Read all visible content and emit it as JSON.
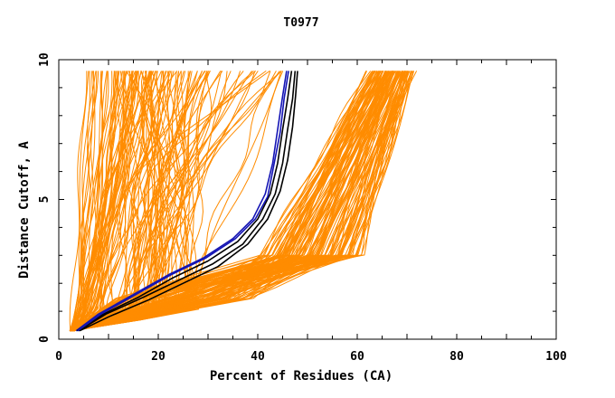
{
  "chart_data": {
    "type": "line",
    "title": "T0977",
    "xlabel": "Percent of Residues (CA)",
    "ylabel": "Distance Cutoff, A",
    "xlim": [
      0,
      100
    ],
    "ylim": [
      0,
      10
    ],
    "x_ticks": [
      "0",
      "20",
      "40",
      "60",
      "80",
      "100"
    ],
    "y_ticks": [
      "0",
      "5",
      "10"
    ],
    "grid": false,
    "colors": {
      "models": "#ff8c00",
      "highlight_blue": "#1414b4",
      "highlight_black": "#000000"
    },
    "series": [
      {
        "color": "blue",
        "points": [
          [
            3.5,
            0.3
          ],
          [
            8,
            0.9
          ],
          [
            15,
            1.6
          ],
          [
            22,
            2.3
          ],
          [
            29,
            2.9
          ],
          [
            35,
            3.6
          ],
          [
            39,
            4.3
          ],
          [
            41.5,
            5.2
          ],
          [
            43,
            6.3
          ],
          [
            44,
            7.5
          ],
          [
            45,
            8.7
          ],
          [
            45.8,
            9.6
          ]
        ]
      },
      {
        "color": "black",
        "points": [
          [
            3.7,
            0.3
          ],
          [
            9,
            0.9
          ],
          [
            16,
            1.5
          ],
          [
            23,
            2.2
          ],
          [
            30,
            2.8
          ],
          [
            36,
            3.5
          ],
          [
            40,
            4.3
          ],
          [
            42.5,
            5.2
          ],
          [
            44,
            6.3
          ],
          [
            45,
            7.5
          ],
          [
            46,
            8.6
          ],
          [
            46.8,
            9.6
          ]
        ]
      },
      {
        "color": "black",
        "points": [
          [
            4,
            0.3
          ],
          [
            9.5,
            0.9
          ],
          [
            17,
            1.5
          ],
          [
            24,
            2.1
          ],
          [
            31,
            2.7
          ],
          [
            37,
            3.4
          ],
          [
            41,
            4.3
          ],
          [
            43.5,
            5.2
          ],
          [
            45,
            6.3
          ],
          [
            46,
            7.5
          ],
          [
            47,
            8.6
          ],
          [
            47.5,
            9.6
          ]
        ]
      },
      {
        "color": "black",
        "points": [
          [
            4.2,
            0.3
          ],
          [
            10,
            0.8
          ],
          [
            18,
            1.4
          ],
          [
            25,
            2.0
          ],
          [
            32,
            2.6
          ],
          [
            38,
            3.4
          ],
          [
            42,
            4.3
          ],
          [
            44.5,
            5.3
          ],
          [
            46,
            6.4
          ],
          [
            47,
            7.6
          ],
          [
            47.6,
            8.7
          ],
          [
            48,
            9.6
          ]
        ]
      },
      {
        "color": "blue",
        "points": [
          [
            3.8,
            0.3
          ],
          [
            8.5,
            0.9
          ],
          [
            15.5,
            1.6
          ],
          [
            22.5,
            2.3
          ],
          [
            29.5,
            2.9
          ],
          [
            35.5,
            3.6
          ],
          [
            39.5,
            4.3
          ],
          [
            42,
            5.1
          ],
          [
            43.2,
            6.2
          ],
          [
            44.5,
            7.4
          ],
          [
            45.3,
            8.6
          ],
          [
            46.2,
            9.6
          ]
        ]
      }
    ]
  }
}
